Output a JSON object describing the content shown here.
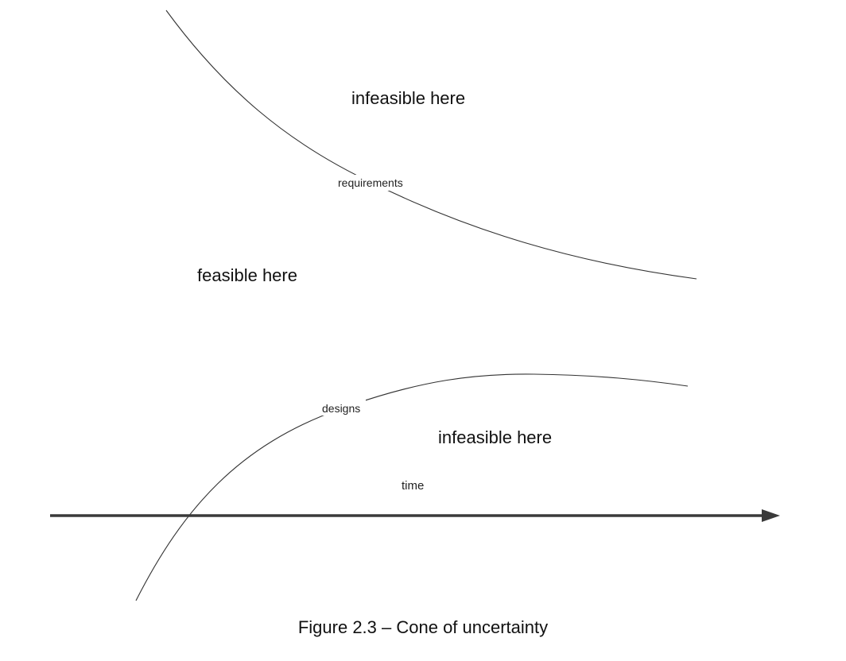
{
  "diagram": {
    "regions": {
      "infeasible_top": "infeasible here",
      "feasible_middle": "feasible here",
      "infeasible_bottom": "infeasible here"
    },
    "curves": {
      "requirements": "requirements",
      "designs": "designs"
    },
    "axis": {
      "label": "time"
    }
  },
  "caption": "Figure 2.3 – Cone of uncertainty"
}
